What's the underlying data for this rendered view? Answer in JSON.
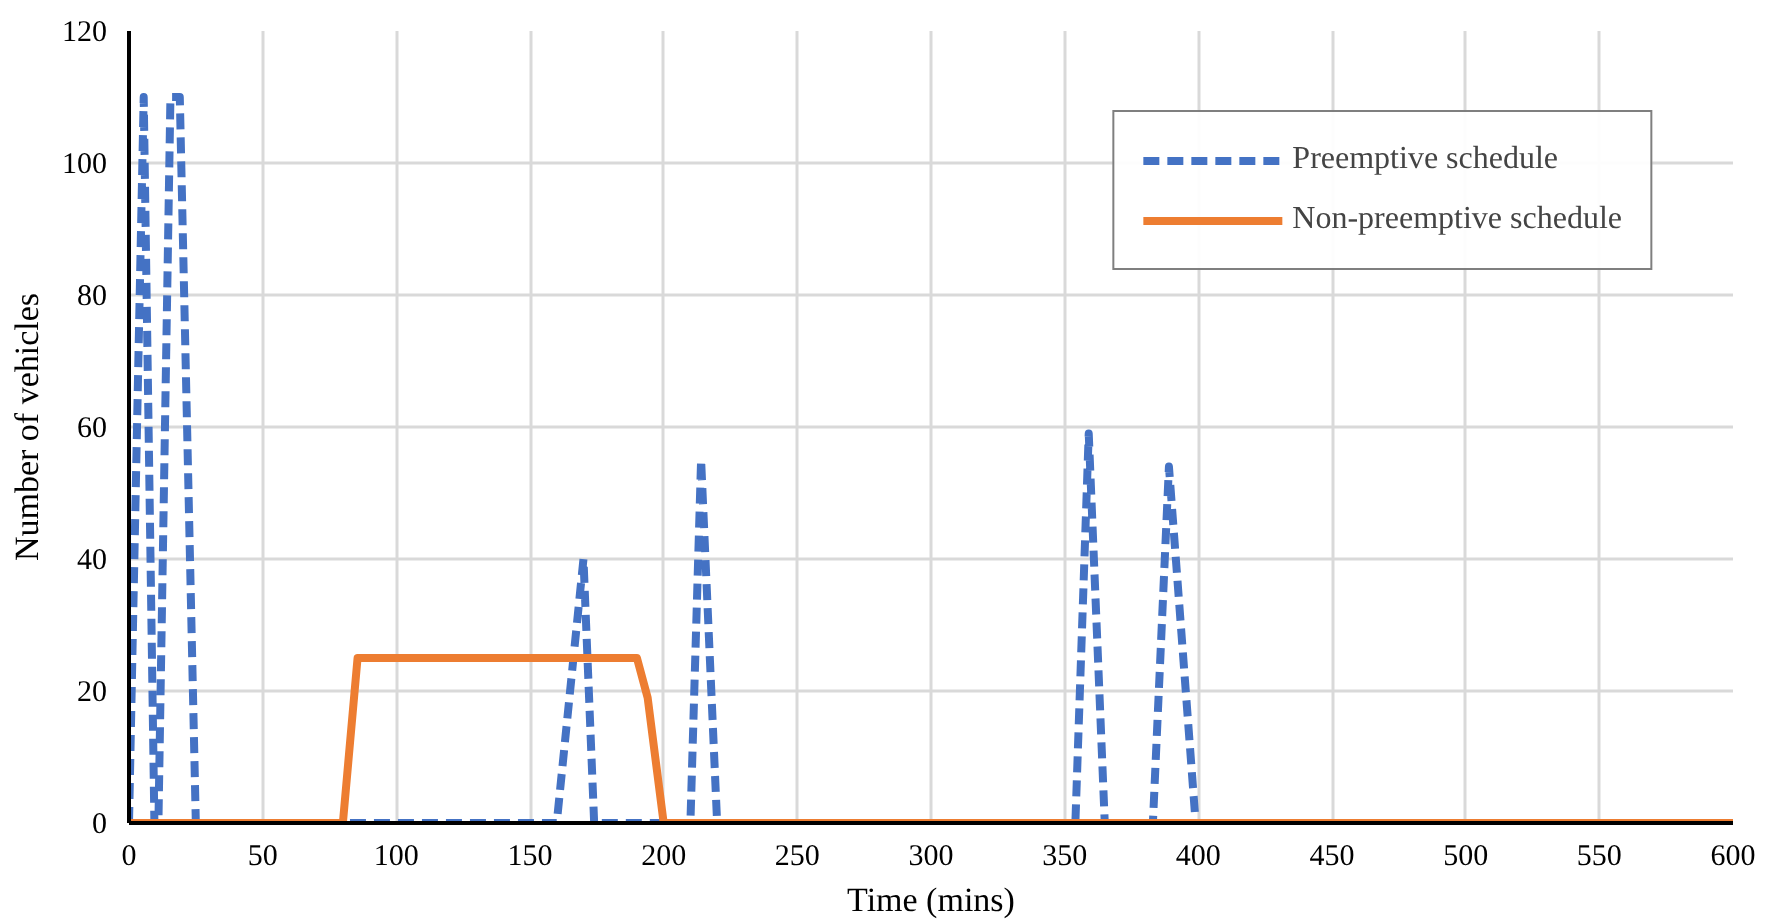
{
  "chart_data": {
    "type": "line",
    "xlabel": "Time (mins)",
    "ylabel": "Number of vehicles",
    "xlim": [
      0,
      600
    ],
    "ylim": [
      0,
      120
    ],
    "xticks": [
      0,
      50,
      100,
      150,
      200,
      250,
      300,
      350,
      400,
      450,
      500,
      550,
      600
    ],
    "yticks": [
      0,
      20,
      40,
      60,
      80,
      100,
      120
    ],
    "grid": true,
    "legend": "top right",
    "marker": "none",
    "series": [
      {
        "name": "Preemptive schedule",
        "color": "#4472c4",
        "line_style": "dashed",
        "x": [
          0,
          5.5,
          9.5,
          11,
          15.5,
          19,
          25,
          160,
          170,
          174,
          210,
          214,
          220,
          354,
          359,
          365,
          383,
          389,
          399,
          600
        ],
        "values": [
          0,
          110,
          0,
          0,
          110,
          110,
          0,
          0,
          40,
          0,
          0,
          55,
          0,
          0,
          59,
          0,
          0,
          54,
          0,
          0
        ]
      },
      {
        "name": "Non-preemptive schedule",
        "color": "#ed7d31",
        "line_style": "solid",
        "x": [
          0,
          80,
          85.5,
          190,
          194,
          200,
          600
        ],
        "values": [
          0,
          0,
          25,
          25,
          19,
          0,
          0
        ]
      }
    ]
  }
}
